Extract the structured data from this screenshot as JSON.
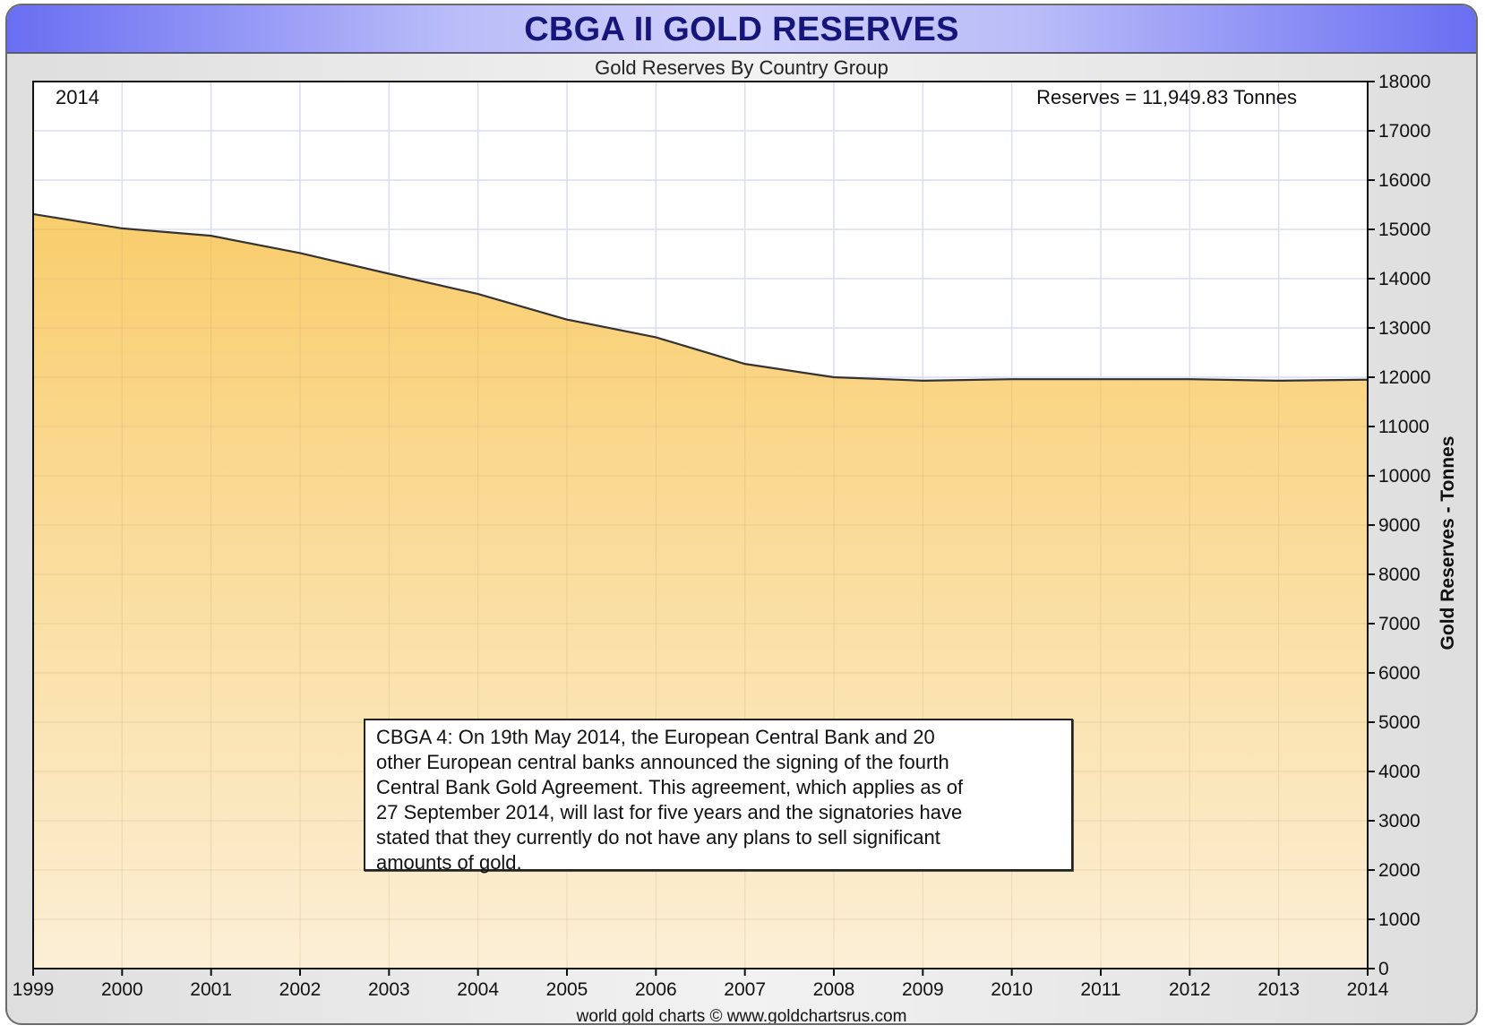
{
  "header": {
    "title": "CBGA II GOLD RESERVES",
    "subtitle": "Gold Reserves By Country Group"
  },
  "readouts": {
    "year": "2014",
    "reserves": "Reserves = 11,949.83 Tonnes"
  },
  "annotation": {
    "text": "CBGA 4:  On 19th May 2014, the European Central Bank and 20\nother European central banks announced the signing of the fourth\nCentral Bank Gold Agreement. This agreement, which applies as of\n27 September 2014, will last for five years and the signatories have\nstated that they currently do not have any plans to sell significant\namounts of gold."
  },
  "footer": {
    "credit": "world gold charts © www.goldchartsrus.com"
  },
  "colors": {
    "fill_top": "#f9cd6c",
    "fill_bottom": "#fcefd6",
    "line": "#333333",
    "grid": "#dcdcf5",
    "title_text": "#15157a"
  },
  "chart_data": {
    "type": "area",
    "title": "CBGA II GOLD RESERVES",
    "subtitle": "Gold Reserves By Country Group",
    "xlabel": "",
    "ylabel": "Gold Reserves - Tonnes",
    "x": [
      1999,
      2000,
      2001,
      2002,
      2003,
      2004,
      2005,
      2006,
      2007,
      2008,
      2009,
      2010,
      2011,
      2012,
      2013,
      2014
    ],
    "series": [
      {
        "name": "CBGA II Gold Reserves",
        "values": [
          15310,
          15020,
          14870,
          14520,
          14100,
          13690,
          13170,
          12810,
          12270,
          12000,
          11930,
          11960,
          11960,
          11960,
          11930,
          11949.83
        ]
      }
    ],
    "xlim": [
      1999,
      2014
    ],
    "ylim": [
      0,
      18000
    ],
    "x_ticks": [
      "1999",
      "2000",
      "2001",
      "2002",
      "2003",
      "2004",
      "2005",
      "2006",
      "2007",
      "2008",
      "2009",
      "2010",
      "2011",
      "2012",
      "2013",
      "2014"
    ],
    "y_ticks": [
      "0",
      "1000",
      "2000",
      "3000",
      "4000",
      "5000",
      "6000",
      "7000",
      "8000",
      "9000",
      "10000",
      "11000",
      "12000",
      "13000",
      "14000",
      "15000",
      "16000",
      "17000",
      "18000"
    ],
    "y_axis_side": "right",
    "grid": true,
    "annotations": [
      "2014",
      "Reserves = 11,949.83 Tonnes"
    ]
  }
}
